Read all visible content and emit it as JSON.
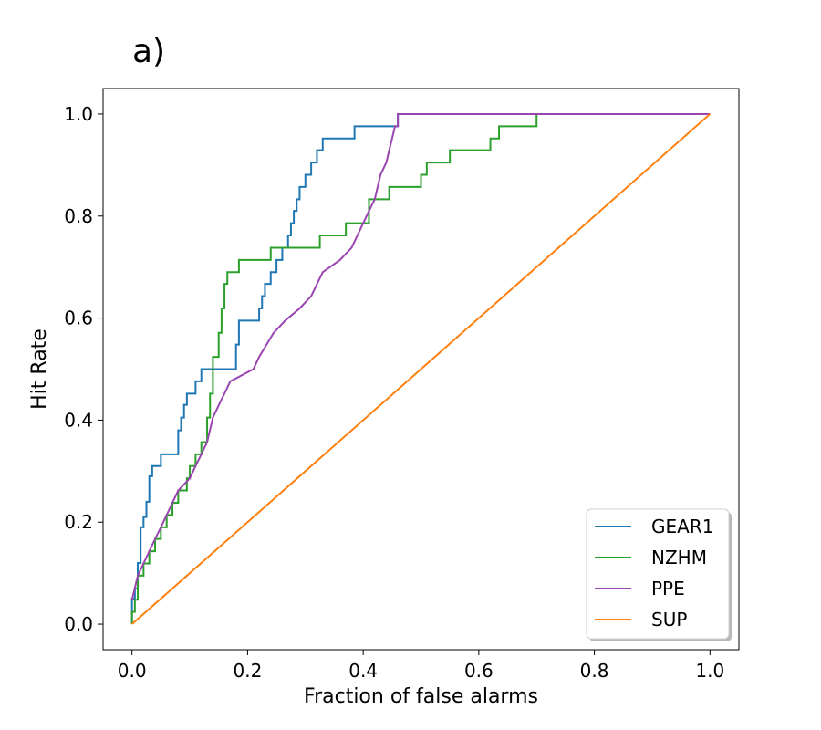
{
  "chart_data": {
    "type": "line",
    "title": "a)",
    "xlabel": "Fraction of false alarms",
    "ylabel": "Hit Rate",
    "xlim": [
      -0.05,
      1.05
    ],
    "ylim": [
      -0.05,
      1.05
    ],
    "xticks": [
      0.0,
      0.2,
      0.4,
      0.6,
      0.8,
      1.0
    ],
    "yticks": [
      0.0,
      0.2,
      0.4,
      0.6,
      0.8,
      1.0
    ],
    "xtick_labels": [
      "0.0",
      "0.2",
      "0.4",
      "0.6",
      "0.8",
      "1.0"
    ],
    "ytick_labels": [
      "0.0",
      "0.2",
      "0.4",
      "0.6",
      "0.8",
      "1.0"
    ],
    "grid": false,
    "legend_position": "lower-right",
    "series": [
      {
        "name": "GEAR1",
        "color": "#1f77b4",
        "x": [
          0.0,
          0.0,
          0.005,
          0.005,
          0.01,
          0.01,
          0.015,
          0.015,
          0.02,
          0.02,
          0.025,
          0.025,
          0.03,
          0.03,
          0.035,
          0.035,
          0.04,
          0.04,
          0.05,
          0.05,
          0.08,
          0.08,
          0.085,
          0.085,
          0.09,
          0.09,
          0.095,
          0.095,
          0.11,
          0.11,
          0.12,
          0.12,
          0.18,
          0.18,
          0.185,
          0.185,
          0.22,
          0.22,
          0.225,
          0.225,
          0.23,
          0.23,
          0.24,
          0.24,
          0.25,
          0.25,
          0.26,
          0.26,
          0.27,
          0.27,
          0.275,
          0.275,
          0.28,
          0.28,
          0.285,
          0.285,
          0.29,
          0.29,
          0.3,
          0.3,
          0.31,
          0.31,
          0.315,
          0.315,
          0.32,
          0.32,
          0.33,
          0.33,
          0.385,
          0.385,
          0.46,
          0.46,
          0.55,
          0.55,
          1.0
        ],
        "y": [
          0.0,
          0.05,
          0.05,
          0.07,
          0.07,
          0.12,
          0.12,
          0.19,
          0.19,
          0.21,
          0.21,
          0.24,
          0.24,
          0.29,
          0.29,
          0.31,
          0.31,
          0.31,
          0.31,
          0.333,
          0.333,
          0.38,
          0.38,
          0.405,
          0.405,
          0.43,
          0.43,
          0.452,
          0.452,
          0.476,
          0.476,
          0.5,
          0.5,
          0.548,
          0.548,
          0.595,
          0.595,
          0.619,
          0.619,
          0.643,
          0.643,
          0.667,
          0.667,
          0.69,
          0.69,
          0.714,
          0.714,
          0.738,
          0.738,
          0.762,
          0.762,
          0.786,
          0.786,
          0.81,
          0.81,
          0.833,
          0.833,
          0.857,
          0.857,
          0.881,
          0.881,
          0.905,
          0.905,
          0.905,
          0.905,
          0.929,
          0.929,
          0.952,
          0.952,
          0.976,
          0.976,
          1.0,
          1.0,
          1.0,
          1.0
        ]
      },
      {
        "name": "NZHM",
        "color": "#2ca02c",
        "x": [
          0.0,
          0.0,
          0.005,
          0.005,
          0.01,
          0.01,
          0.02,
          0.02,
          0.03,
          0.03,
          0.04,
          0.04,
          0.05,
          0.05,
          0.06,
          0.06,
          0.07,
          0.07,
          0.08,
          0.08,
          0.095,
          0.095,
          0.1,
          0.1,
          0.11,
          0.11,
          0.12,
          0.12,
          0.13,
          0.13,
          0.135,
          0.135,
          0.14,
          0.14,
          0.15,
          0.15,
          0.155,
          0.155,
          0.16,
          0.16,
          0.165,
          0.165,
          0.17,
          0.17,
          0.185,
          0.185,
          0.24,
          0.24,
          0.325,
          0.325,
          0.37,
          0.37,
          0.41,
          0.41,
          0.445,
          0.445,
          0.5,
          0.5,
          0.51,
          0.51,
          0.55,
          0.55,
          0.62,
          0.62,
          0.635,
          0.635,
          0.7,
          0.7,
          1.0
        ],
        "y": [
          0.0,
          0.024,
          0.024,
          0.048,
          0.048,
          0.095,
          0.095,
          0.119,
          0.119,
          0.143,
          0.143,
          0.167,
          0.167,
          0.19,
          0.19,
          0.214,
          0.214,
          0.238,
          0.238,
          0.262,
          0.262,
          0.286,
          0.286,
          0.31,
          0.31,
          0.333,
          0.333,
          0.357,
          0.357,
          0.405,
          0.405,
          0.452,
          0.452,
          0.524,
          0.524,
          0.571,
          0.571,
          0.619,
          0.619,
          0.667,
          0.667,
          0.69,
          0.69,
          0.69,
          0.69,
          0.714,
          0.714,
          0.738,
          0.738,
          0.762,
          0.762,
          0.786,
          0.786,
          0.833,
          0.833,
          0.857,
          0.857,
          0.881,
          0.881,
          0.905,
          0.905,
          0.929,
          0.929,
          0.952,
          0.952,
          0.976,
          0.976,
          1.0,
          1.0
        ]
      },
      {
        "name": "PPE",
        "color": "#9a45b0",
        "x": [
          0.0,
          0.0,
          0.005,
          0.005,
          0.01,
          0.01,
          0.02,
          0.02,
          0.03,
          0.03,
          0.04,
          0.04,
          0.05,
          0.05,
          0.06,
          0.06,
          0.07,
          0.07,
          0.08,
          0.08,
          0.1,
          0.1,
          0.11,
          0.11,
          0.12,
          0.12,
          0.13,
          0.13,
          0.135,
          0.135,
          0.14,
          0.14,
          0.15,
          0.15,
          0.16,
          0.16,
          0.17,
          0.17,
          0.21,
          0.21,
          0.22,
          0.22,
          0.245,
          0.245,
          0.265,
          0.265,
          0.29,
          0.29,
          0.31,
          0.31,
          0.33,
          0.33,
          0.36,
          0.36,
          0.38,
          0.38,
          0.39,
          0.39,
          0.4,
          0.4,
          0.41,
          0.41,
          0.42,
          0.42,
          0.425,
          0.425,
          0.43,
          0.43,
          0.44,
          0.44,
          0.445,
          0.445,
          0.45,
          0.45,
          0.455,
          0.455,
          0.46,
          0.46,
          0.55,
          0.55,
          1.0
        ],
        "y": [
          0.048,
          0.048,
          0.071,
          0.071,
          0.095,
          0.095,
          0.119,
          0.119,
          0.143,
          0.143,
          0.167,
          0.167,
          0.19,
          0.19,
          0.214,
          0.214,
          0.238,
          0.238,
          0.262,
          0.262,
          0.286,
          0.286,
          0.31,
          0.31,
          0.333,
          0.333,
          0.357,
          0.357,
          0.381,
          0.381,
          0.405,
          0.405,
          0.429,
          0.429,
          0.452,
          0.452,
          0.476,
          0.476,
          0.5,
          0.5,
          0.524,
          0.524,
          0.571,
          0.571,
          0.595,
          0.595,
          0.619,
          0.619,
          0.643,
          0.643,
          0.69,
          0.69,
          0.714,
          0.714,
          0.738,
          0.738,
          0.762,
          0.762,
          0.786,
          0.786,
          0.81,
          0.81,
          0.833,
          0.833,
          0.857,
          0.857,
          0.881,
          0.881,
          0.905,
          0.905,
          0.929,
          0.929,
          0.952,
          0.952,
          0.976,
          0.976,
          0.976,
          1.0,
          1.0,
          1.0,
          1.0
        ]
      },
      {
        "name": "SUP",
        "color": "#ff7f0e",
        "x": [
          0.0,
          1.0
        ],
        "y": [
          0.0,
          1.0
        ]
      }
    ]
  }
}
